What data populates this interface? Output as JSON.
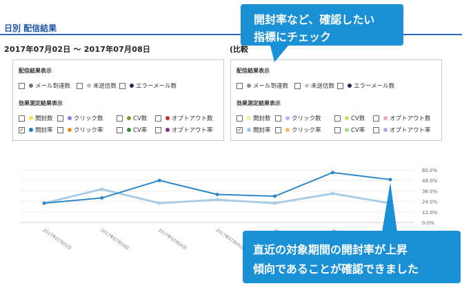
{
  "header": {
    "section_title": "日別 配信結果",
    "date_range": "2017年07月02日 ～ 2017年07月08日",
    "compare_label": "(比較"
  },
  "panel_left": {
    "delivery_header": "配信結果表示",
    "delivery_options": [
      {
        "label": "メール到達数",
        "checked": false,
        "color": "#707070"
      },
      {
        "label": "未送信数",
        "checked": false,
        "color": "#bdbdbd"
      },
      {
        "label": "エラーメール数",
        "checked": false,
        "color": "#1f2a44"
      }
    ],
    "effect_header": "効果測定結果表示",
    "effect_row1": [
      {
        "label": "開封数",
        "checked": false,
        "color": "#f1e35a"
      },
      {
        "label": "クリック数",
        "checked": false,
        "color": "#8a7ee8"
      },
      {
        "label": "CV数",
        "checked": false,
        "color": "#8f8b2a"
      },
      {
        "label": "オプトアウト数",
        "checked": false,
        "color": "#d42a2a"
      }
    ],
    "effect_row2": [
      {
        "label": "開封率",
        "checked": true,
        "color": "#1d7cc4",
        "mark": "✓"
      },
      {
        "label": "クリック率",
        "checked": false,
        "color": "#f08a1a"
      },
      {
        "label": "CV率",
        "checked": false,
        "color": "#2e8f2e"
      },
      {
        "label": "オプトアウト率",
        "checked": false,
        "color": "#8a2a8a"
      }
    ]
  },
  "panel_right": {
    "delivery_header": "配信結果表示",
    "delivery_options": [
      {
        "label": "メール到達数",
        "checked": false,
        "color": "#8a8a8a"
      },
      {
        "label": "未送信数",
        "checked": false,
        "color": "#b9c6d6"
      },
      {
        "label": "エラーメール数",
        "checked": false,
        "color": "#1f2a44"
      }
    ],
    "effect_header": "効果測定結果表示",
    "effect_row1": [
      {
        "label": "開封数",
        "checked": false,
        "color": "#f3ec9a"
      },
      {
        "label": "クリック数",
        "checked": false,
        "color": "#b9b4ef"
      },
      {
        "label": "CV数",
        "checked": false,
        "color": "#d8d86a"
      },
      {
        "label": "オプトアウト数",
        "checked": false,
        "color": "#f0a7a7"
      }
    ],
    "effect_row2": [
      {
        "label": "開封率",
        "checked": true,
        "color": "#9ec7e6",
        "mark": "✓"
      },
      {
        "label": "クリック率",
        "checked": false,
        "color": "#f5b860"
      },
      {
        "label": "CV率",
        "checked": false,
        "color": "#a9d68a"
      },
      {
        "label": "オプトアウト率",
        "checked": false,
        "color": "#b5a8dc"
      }
    ]
  },
  "callouts": {
    "top_line1": "開封率など、確認したい",
    "top_line2": "指標にチェック",
    "bottom_line1": "直近の対象期間の開封率が上昇",
    "bottom_line2": "傾向であることが確認できました"
  },
  "chart_data": {
    "type": "line",
    "categories": [
      "2017年07月02日",
      "2017年07月03日",
      "2017年07月04日",
      "2017年07月05日",
      "2017年07月06日",
      "2017年07月07日",
      "2017年07月08日"
    ],
    "y_ticks": [
      "60.0%",
      "48.0%",
      "36.0%",
      "24.0%",
      "12.0%",
      "0.0%"
    ],
    "ylim": [
      0,
      60
    ],
    "series": [
      {
        "values": [
          22,
          28,
          48,
          32,
          30,
          57,
          49
        ],
        "color": "#2b88c8"
      },
      {
        "values": [
          22,
          38,
          22,
          26,
          22,
          33,
          22
        ],
        "color": "#a9cde6"
      }
    ]
  }
}
